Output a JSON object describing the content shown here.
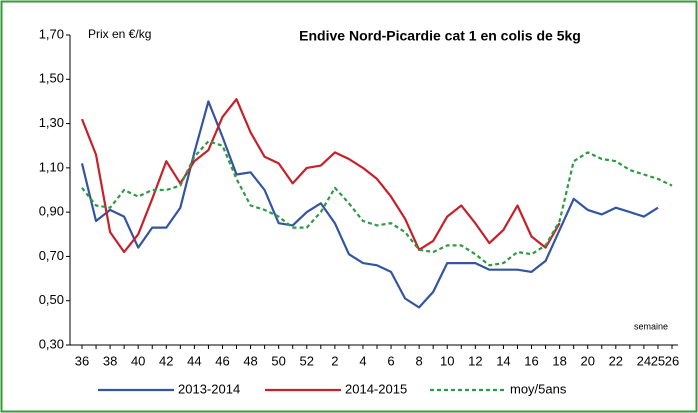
{
  "chart_data": {
    "type": "line",
    "title": "Endive Nord-Picardie cat 1 en colis de 5kg",
    "y_label": "Prix en €/kg",
    "x_label": "semaine",
    "categories": [
      36,
      null,
      38,
      null,
      40,
      null,
      42,
      null,
      44,
      null,
      46,
      null,
      48,
      null,
      50,
      null,
      52,
      null,
      2,
      null,
      4,
      null,
      6,
      null,
      8,
      null,
      10,
      null,
      12,
      null,
      14,
      null,
      16,
      null,
      18,
      null,
      20,
      null,
      22,
      null,
      24,
      25,
      26
    ],
    "ylim": [
      0.3,
      1.7
    ],
    "yticks": [
      {
        "value": 0.3,
        "label": "0,30"
      },
      {
        "value": 0.5,
        "label": "0,50"
      },
      {
        "value": 0.7,
        "label": "0,70"
      },
      {
        "value": 0.9,
        "label": "0,90"
      },
      {
        "value": 1.1,
        "label": "1,10"
      },
      {
        "value": 1.3,
        "label": "1,30"
      },
      {
        "value": 1.5,
        "label": "1,50"
      },
      {
        "value": 1.7,
        "label": "1,70"
      }
    ],
    "grid": false,
    "legend": "bottom",
    "series": [
      {
        "name": "2013-2014",
        "color": "#3355a0",
        "dash": false,
        "values": [
          1.12,
          0.86,
          0.91,
          0.88,
          0.74,
          0.83,
          0.83,
          0.92,
          1.17,
          1.4,
          1.24,
          1.07,
          1.08,
          1.0,
          0.85,
          0.84,
          0.9,
          0.94,
          0.85,
          0.71,
          0.67,
          0.66,
          0.63,
          0.51,
          0.47,
          0.54,
          0.67,
          0.67,
          0.67,
          0.64,
          0.64,
          0.64,
          0.63,
          0.68,
          0.82,
          0.96,
          0.91,
          0.89,
          0.92,
          0.9,
          0.88,
          0.92,
          null
        ]
      },
      {
        "name": "2014-2015",
        "color": "#c8202a",
        "dash": false,
        "values": [
          1.32,
          1.16,
          0.81,
          0.72,
          0.8,
          0.96,
          1.13,
          1.03,
          1.13,
          1.18,
          1.33,
          1.41,
          1.26,
          1.15,
          1.12,
          1.03,
          1.1,
          1.11,
          1.17,
          1.14,
          1.1,
          1.05,
          0.97,
          0.87,
          0.73,
          0.77,
          0.88,
          0.93,
          0.85,
          0.76,
          0.82,
          0.93,
          0.79,
          0.74,
          0.85,
          null,
          null,
          null,
          null,
          null,
          null,
          null,
          null
        ]
      },
      {
        "name": "moy/5ans",
        "color": "#2f9a45",
        "dash": true,
        "values": [
          1.01,
          0.93,
          0.92,
          1.0,
          0.97,
          1.0,
          1.0,
          1.02,
          1.15,
          1.22,
          1.2,
          1.05,
          0.93,
          0.91,
          0.88,
          0.83,
          0.83,
          0.9,
          1.01,
          0.94,
          0.86,
          0.84,
          0.85,
          0.81,
          0.73,
          0.72,
          0.75,
          0.75,
          0.71,
          0.66,
          0.67,
          0.72,
          0.71,
          0.75,
          0.86,
          1.13,
          1.17,
          1.14,
          1.13,
          1.09,
          1.07,
          1.05,
          1.02
        ]
      }
    ]
  }
}
